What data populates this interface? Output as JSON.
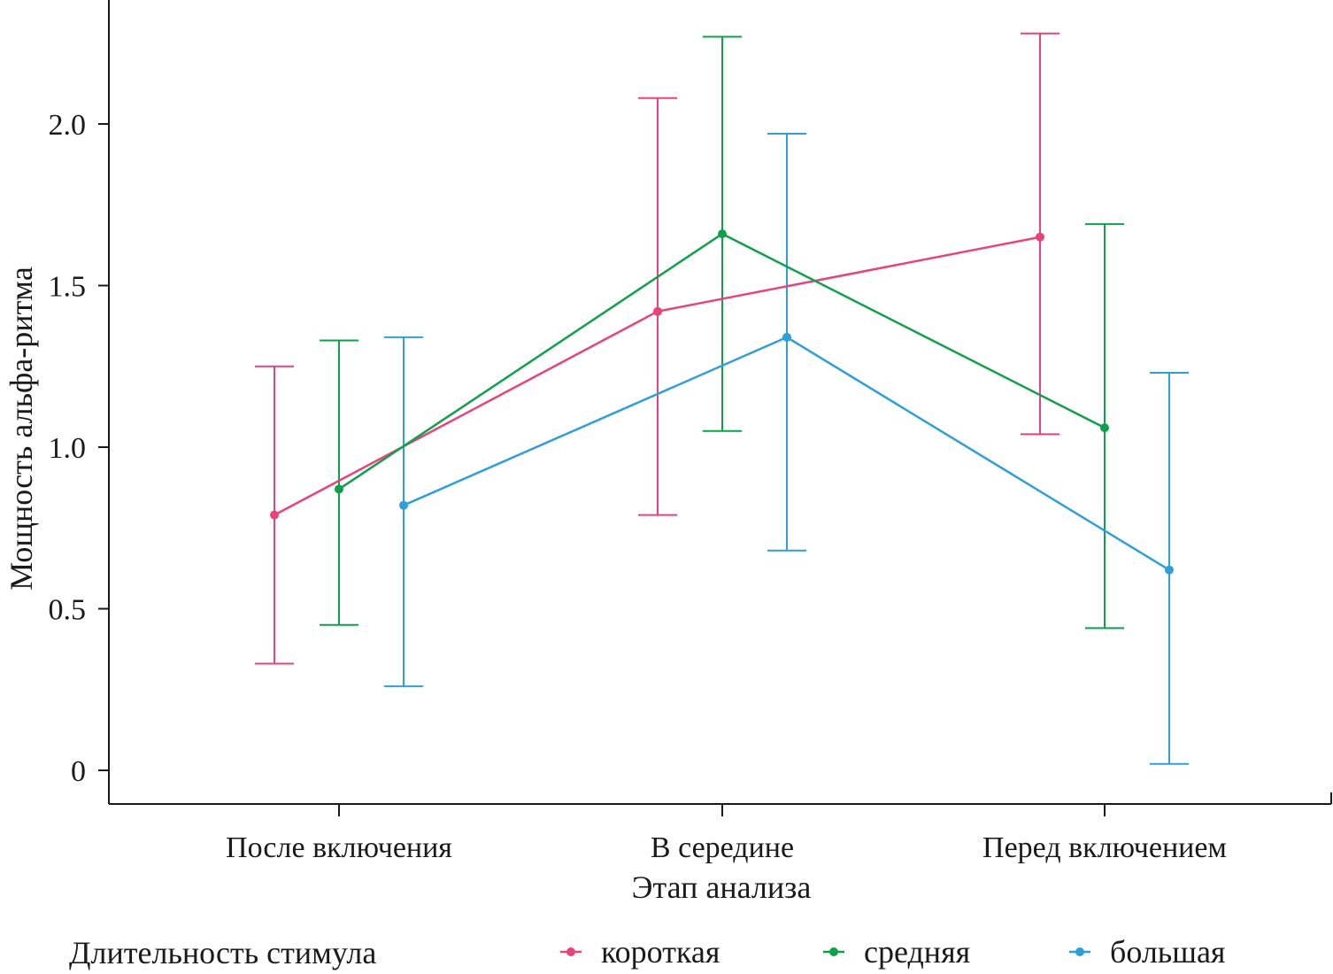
{
  "chart_data": {
    "type": "line",
    "xlabel": "Этап анализа",
    "ylabel": "Мощность альфа-ритма",
    "categories": [
      "После включения",
      "В середине",
      "Перед включением"
    ],
    "yticks": [
      "0",
      "0.5",
      "1.0",
      "1.5",
      "2.0"
    ],
    "ytick_values": [
      0,
      0.5,
      1.0,
      1.5,
      2.0
    ],
    "ylim": [
      -0.1,
      2.38
    ],
    "grid": false,
    "legend": {
      "title": "Длительность стимула",
      "placement": "bottom"
    },
    "series": [
      {
        "name": "короткая",
        "color": "#e8437a",
        "values": [
          0.79,
          1.42,
          1.65
        ],
        "err_low": [
          0.33,
          0.79,
          1.04
        ],
        "err_high": [
          1.25,
          2.08,
          2.28
        ]
      },
      {
        "name": "средняя",
        "color": "#0fa14a",
        "values": [
          0.87,
          1.66,
          1.06
        ],
        "err_low": [
          0.45,
          1.05,
          0.44
        ],
        "err_high": [
          1.33,
          2.27,
          1.69
        ]
      },
      {
        "name": "большая",
        "color": "#2e9fd8",
        "values": [
          0.82,
          1.34,
          0.62
        ],
        "err_low": [
          0.26,
          0.68,
          0.02
        ],
        "err_high": [
          1.34,
          1.97,
          1.23
        ]
      }
    ]
  }
}
